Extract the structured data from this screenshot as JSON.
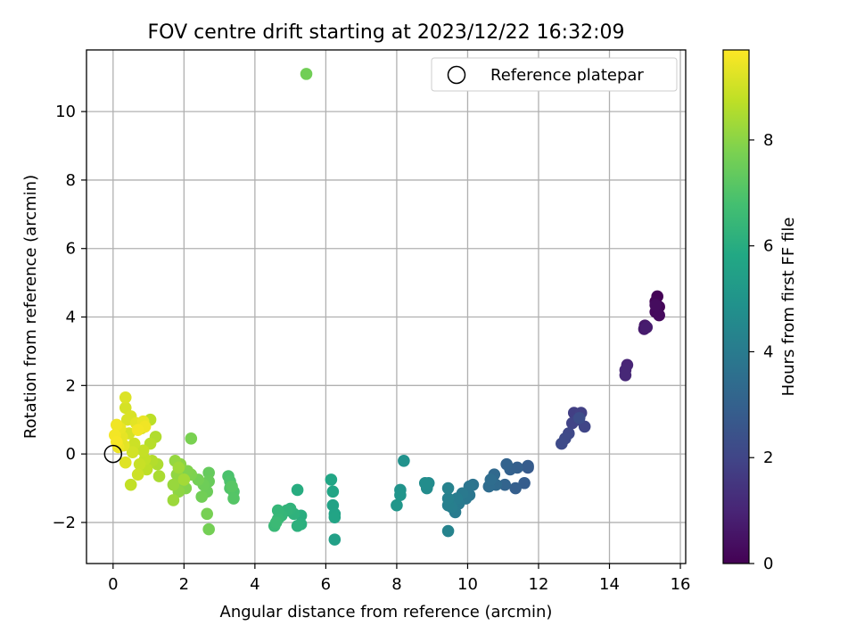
{
  "chart_data": {
    "type": "scatter",
    "title": "FOV centre drift starting at 2023/12/22 16:32:09",
    "xlabel": "Angular distance from reference (arcmin)",
    "ylabel": "Rotation from reference (arcmin)",
    "xlim": [
      -0.75,
      16.15
    ],
    "ylim": [
      -3.2,
      11.8
    ],
    "xticks": [
      "0",
      "2",
      "4",
      "6",
      "8",
      "10",
      "12",
      "14",
      "16"
    ],
    "yticks": [
      "−2",
      "0",
      "2",
      "4",
      "6",
      "8",
      "10"
    ],
    "grid": true,
    "legend": {
      "placement": "top-right",
      "entries": [
        "Reference platepar"
      ]
    },
    "reference_point": {
      "label": "Reference platepar",
      "x": 0,
      "y": 0
    },
    "colorbar": {
      "label": "Hours from first FF file",
      "range": [
        0,
        9.7
      ],
      "ticks": [
        "0",
        "2",
        "4",
        "6",
        "8"
      ],
      "colormap": "viridis"
    },
    "points": [
      {
        "x": 15.35,
        "y": 4.6,
        "c": 0.05
      },
      {
        "x": 15.3,
        "y": 4.45,
        "c": 0.1
      },
      {
        "x": 15.4,
        "y": 4.3,
        "c": 0.15
      },
      {
        "x": 15.3,
        "y": 4.15,
        "c": 0.2
      },
      {
        "x": 15.4,
        "y": 4.05,
        "c": 0.25
      },
      {
        "x": 15.3,
        "y": 4.35,
        "c": 0.3
      },
      {
        "x": 15.0,
        "y": 3.75,
        "c": 0.6
      },
      {
        "x": 14.98,
        "y": 3.65,
        "c": 0.7
      },
      {
        "x": 15.05,
        "y": 3.7,
        "c": 0.75
      },
      {
        "x": 14.5,
        "y": 2.6,
        "c": 1.0
      },
      {
        "x": 14.45,
        "y": 2.45,
        "c": 1.05
      },
      {
        "x": 14.45,
        "y": 2.3,
        "c": 1.1
      },
      {
        "x": 13.0,
        "y": 1.2,
        "c": 1.8
      },
      {
        "x": 13.2,
        "y": 1.2,
        "c": 1.85
      },
      {
        "x": 13.1,
        "y": 1.0,
        "c": 1.9
      },
      {
        "x": 12.95,
        "y": 0.9,
        "c": 1.95
      },
      {
        "x": 13.3,
        "y": 0.8,
        "c": 2.0
      },
      {
        "x": 12.85,
        "y": 0.6,
        "c": 2.1
      },
      {
        "x": 12.75,
        "y": 0.45,
        "c": 2.15
      },
      {
        "x": 12.65,
        "y": 0.3,
        "c": 2.2
      },
      {
        "x": 13.15,
        "y": 1.05,
        "c": 2.25
      },
      {
        "x": 11.7,
        "y": -0.4,
        "c": 2.7
      },
      {
        "x": 11.7,
        "y": -0.35,
        "c": 2.8
      },
      {
        "x": 11.6,
        "y": -0.85,
        "c": 2.85
      },
      {
        "x": 11.35,
        "y": -1.0,
        "c": 2.9
      },
      {
        "x": 11.4,
        "y": -0.4,
        "c": 2.95
      },
      {
        "x": 11.2,
        "y": -0.45,
        "c": 3.0
      },
      {
        "x": 11.1,
        "y": -0.3,
        "c": 3.05
      },
      {
        "x": 11.05,
        "y": -0.9,
        "c": 3.1
      },
      {
        "x": 10.75,
        "y": -0.6,
        "c": 3.3
      },
      {
        "x": 10.8,
        "y": -0.9,
        "c": 3.35
      },
      {
        "x": 10.6,
        "y": -0.95,
        "c": 3.4
      },
      {
        "x": 10.65,
        "y": -0.75,
        "c": 3.45
      },
      {
        "x": 10.15,
        "y": -0.9,
        "c": 3.7
      },
      {
        "x": 10.05,
        "y": -0.95,
        "c": 3.75
      },
      {
        "x": 10.05,
        "y": -1.2,
        "c": 3.8
      },
      {
        "x": 9.95,
        "y": -1.3,
        "c": 3.85
      },
      {
        "x": 9.85,
        "y": -1.15,
        "c": 3.9
      },
      {
        "x": 9.75,
        "y": -1.45,
        "c": 3.95
      },
      {
        "x": 9.65,
        "y": -1.7,
        "c": 4.0
      },
      {
        "x": 9.7,
        "y": -1.3,
        "c": 4.05
      },
      {
        "x": 9.55,
        "y": -1.55,
        "c": 4.1
      },
      {
        "x": 9.45,
        "y": -1.5,
        "c": 4.15
      },
      {
        "x": 9.45,
        "y": -1.3,
        "c": 4.2
      },
      {
        "x": 9.45,
        "y": -1.0,
        "c": 4.25
      },
      {
        "x": 9.45,
        "y": -2.25,
        "c": 4.3
      },
      {
        "x": 8.9,
        "y": -0.85,
        "c": 4.6
      },
      {
        "x": 8.85,
        "y": -1.0,
        "c": 4.65
      },
      {
        "x": 8.8,
        "y": -0.85,
        "c": 4.7
      },
      {
        "x": 8.2,
        "y": -0.2,
        "c": 4.9
      },
      {
        "x": 8.1,
        "y": -1.05,
        "c": 4.95
      },
      {
        "x": 8.1,
        "y": -1.2,
        "c": 5.0
      },
      {
        "x": 8.0,
        "y": -1.5,
        "c": 5.05
      },
      {
        "x": 6.25,
        "y": -2.5,
        "c": 5.5
      },
      {
        "x": 6.2,
        "y": -1.5,
        "c": 5.55
      },
      {
        "x": 6.25,
        "y": -1.75,
        "c": 5.6
      },
      {
        "x": 6.25,
        "y": -1.85,
        "c": 5.65
      },
      {
        "x": 6.2,
        "y": -1.1,
        "c": 5.7
      },
      {
        "x": 6.15,
        "y": -0.75,
        "c": 5.75
      },
      {
        "x": 5.2,
        "y": -1.05,
        "c": 6.0
      },
      {
        "x": 5.3,
        "y": -1.8,
        "c": 6.05
      },
      {
        "x": 5.3,
        "y": -2.05,
        "c": 6.1
      },
      {
        "x": 5.2,
        "y": -2.1,
        "c": 6.15
      },
      {
        "x": 5.1,
        "y": -1.75,
        "c": 6.2
      },
      {
        "x": 5.0,
        "y": -1.6,
        "c": 6.25
      },
      {
        "x": 4.9,
        "y": -1.65,
        "c": 6.3
      },
      {
        "x": 4.75,
        "y": -1.8,
        "c": 6.35
      },
      {
        "x": 4.65,
        "y": -1.65,
        "c": 6.4
      },
      {
        "x": 4.65,
        "y": -1.9,
        "c": 6.45
      },
      {
        "x": 4.55,
        "y": -2.1,
        "c": 6.5
      },
      {
        "x": 4.6,
        "y": -2.0,
        "c": 6.55
      },
      {
        "x": 3.25,
        "y": -0.65,
        "c": 6.9
      },
      {
        "x": 3.3,
        "y": -0.8,
        "c": 6.95
      },
      {
        "x": 3.3,
        "y": -1.0,
        "c": 7.0
      },
      {
        "x": 3.4,
        "y": -1.1,
        "c": 7.05
      },
      {
        "x": 3.4,
        "y": -1.3,
        "c": 7.1
      },
      {
        "x": 3.35,
        "y": -0.95,
        "c": 7.15
      },
      {
        "x": 2.7,
        "y": -0.55,
        "c": 7.4
      },
      {
        "x": 2.7,
        "y": -0.8,
        "c": 7.45
      },
      {
        "x": 2.65,
        "y": -1.1,
        "c": 7.5
      },
      {
        "x": 2.55,
        "y": -0.9,
        "c": 7.55
      },
      {
        "x": 2.5,
        "y": -1.25,
        "c": 7.6
      },
      {
        "x": 2.4,
        "y": -0.75,
        "c": 7.65
      },
      {
        "x": 2.7,
        "y": -2.2,
        "c": 7.65
      },
      {
        "x": 2.65,
        "y": -1.75,
        "c": 7.7
      },
      {
        "x": 2.2,
        "y": 0.45,
        "c": 7.75
      },
      {
        "x": 2.2,
        "y": -0.6,
        "c": 7.8
      },
      {
        "x": 2.1,
        "y": -0.5,
        "c": 7.85
      },
      {
        "x": 2.05,
        "y": -1.0,
        "c": 7.9
      },
      {
        "x": 1.95,
        "y": -0.8,
        "c": 7.95
      },
      {
        "x": 1.9,
        "y": -0.3,
        "c": 8.0
      },
      {
        "x": 1.85,
        "y": -1.1,
        "c": 8.05
      },
      {
        "x": 1.8,
        "y": -0.6,
        "c": 8.1
      },
      {
        "x": 1.75,
        "y": -0.2,
        "c": 8.15
      },
      {
        "x": 1.7,
        "y": -0.9,
        "c": 8.2
      },
      {
        "x": 1.7,
        "y": -1.35,
        "c": 8.25
      },
      {
        "x": 1.85,
        "y": -0.4,
        "c": 8.3
      },
      {
        "x": 2.0,
        "y": -0.75,
        "c": 8.35
      },
      {
        "x": 1.3,
        "y": -0.65,
        "c": 8.45
      },
      {
        "x": 1.25,
        "y": -0.3,
        "c": 8.5
      },
      {
        "x": 1.2,
        "y": 0.5,
        "c": 8.55
      },
      {
        "x": 1.1,
        "y": -0.2,
        "c": 8.6
      },
      {
        "x": 1.05,
        "y": 0.3,
        "c": 8.65
      },
      {
        "x": 1.05,
        "y": 1.0,
        "c": 8.7
      },
      {
        "x": 0.95,
        "y": -0.45,
        "c": 8.75
      },
      {
        "x": 0.9,
        "y": -0.15,
        "c": 8.8
      },
      {
        "x": 0.85,
        "y": 0.1,
        "c": 8.85
      },
      {
        "x": 0.75,
        "y": -0.3,
        "c": 8.9
      },
      {
        "x": 0.7,
        "y": -0.6,
        "c": 8.95
      },
      {
        "x": 0.8,
        "y": 0.75,
        "c": 9.0
      },
      {
        "x": 0.5,
        "y": -0.9,
        "c": 8.8
      },
      {
        "x": 0.6,
        "y": 0.3,
        "c": 8.95
      },
      {
        "x": 0.55,
        "y": 0.05,
        "c": 9.05
      },
      {
        "x": 0.45,
        "y": 0.6,
        "c": 9.1
      },
      {
        "x": 0.4,
        "y": 1.0,
        "c": 9.15
      },
      {
        "x": 0.35,
        "y": 1.65,
        "c": 9.2
      },
      {
        "x": 0.35,
        "y": -0.25,
        "c": 9.25
      },
      {
        "x": 0.3,
        "y": 0.25,
        "c": 9.3
      },
      {
        "x": 0.25,
        "y": 0.5,
        "c": 9.35
      },
      {
        "x": 0.2,
        "y": 0.75,
        "c": 9.4
      },
      {
        "x": 0.15,
        "y": 0.2,
        "c": 9.45
      },
      {
        "x": 0.1,
        "y": 0.85,
        "c": 9.5
      },
      {
        "x": 0.05,
        "y": 0.55,
        "c": 9.55
      },
      {
        "x": 0.1,
        "y": 0.35,
        "c": 9.6
      },
      {
        "x": 0.35,
        "y": 1.35,
        "c": 9.1
      },
      {
        "x": 0.5,
        "y": 1.1,
        "c": 9.15
      },
      {
        "x": 0.65,
        "y": 0.9,
        "c": 9.3
      },
      {
        "x": 0.85,
        "y": 0.95,
        "c": 9.4
      },
      {
        "x": 0.9,
        "y": 0.8,
        "c": 9.5
      },
      {
        "x": 0.7,
        "y": 0.7,
        "c": 9.55
      },
      {
        "x": 5.45,
        "y": 11.1,
        "c": 7.6
      }
    ]
  }
}
